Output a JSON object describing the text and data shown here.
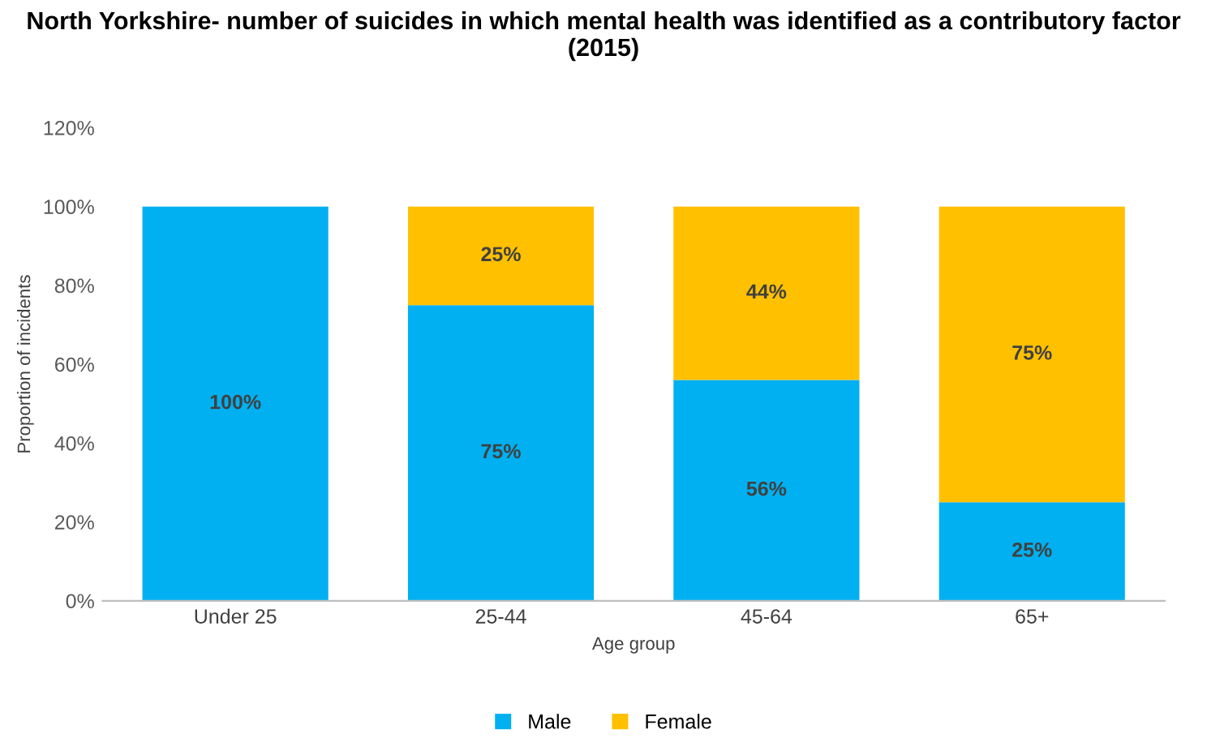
{
  "chart_data": {
    "type": "bar",
    "stacked": true,
    "title": "North Yorkshire- number of suicides in which mental health was identified as a contributory factor (2015)",
    "xlabel": "Age group",
    "ylabel": "Proportion of incidents",
    "categories": [
      "Under 25",
      "25-44",
      "45-64",
      "65+"
    ],
    "series": [
      {
        "name": "Male",
        "color": "#00b0f0",
        "values": [
          100,
          75,
          56,
          25
        ],
        "value_labels": [
          "100%",
          "75%",
          "56%",
          "25%"
        ]
      },
      {
        "name": "Female",
        "color": "#ffc000",
        "values": [
          0,
          25,
          44,
          75
        ],
        "value_labels": [
          null,
          "25%",
          "44%",
          "75%"
        ]
      }
    ],
    "ylim": [
      0,
      120
    ],
    "yticks": [
      {
        "value": 0,
        "label": "0%"
      },
      {
        "value": 20,
        "label": "20%"
      },
      {
        "value": 40,
        "label": "40%"
      },
      {
        "value": 60,
        "label": "60%"
      },
      {
        "value": 80,
        "label": "80%"
      },
      {
        "value": 100,
        "label": "100%"
      },
      {
        "value": 120,
        "label": "120%"
      }
    ],
    "legend": "bottom",
    "grid": false
  }
}
